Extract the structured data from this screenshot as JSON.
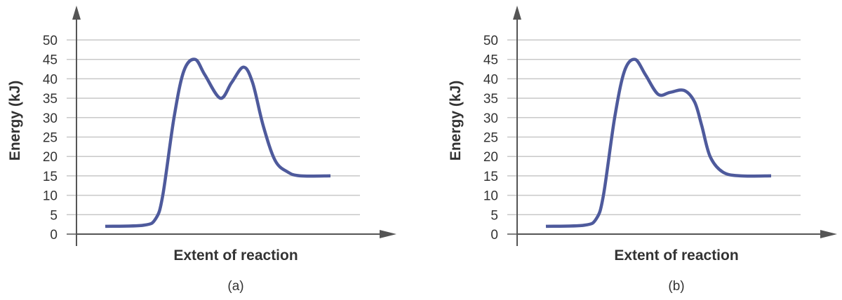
{
  "colors": {
    "curve": "#4e5a9c",
    "axis": "#555555",
    "grid": "#c8c8c8",
    "text": "#333333"
  },
  "chart_data": [
    {
      "type": "line",
      "caption": "(a)",
      "xlabel": "Extent of reaction",
      "ylabel": "Energy (kJ)",
      "ylim": [
        0,
        50
      ],
      "yticks": [
        "0",
        "5",
        "10",
        "15",
        "20",
        "25",
        "30",
        "35",
        "40",
        "45",
        "50"
      ],
      "grid": true,
      "energy_points": [
        2,
        2.3,
        4,
        10,
        30,
        42,
        45,
        41,
        35,
        39,
        43,
        39,
        28,
        19,
        16,
        15,
        15
      ]
    },
    {
      "type": "line",
      "caption": "(b)",
      "xlabel": "Extent of reaction",
      "ylabel": "Energy (kJ)",
      "ylim": [
        0,
        50
      ],
      "yticks": [
        "0",
        "5",
        "10",
        "15",
        "20",
        "25",
        "30",
        "35",
        "40",
        "45",
        "50"
      ],
      "grid": true,
      "energy_points": [
        2,
        2.3,
        4,
        10,
        30,
        42,
        45,
        41,
        36,
        36.5,
        37,
        34,
        28,
        20,
        16,
        15,
        15
      ]
    }
  ]
}
